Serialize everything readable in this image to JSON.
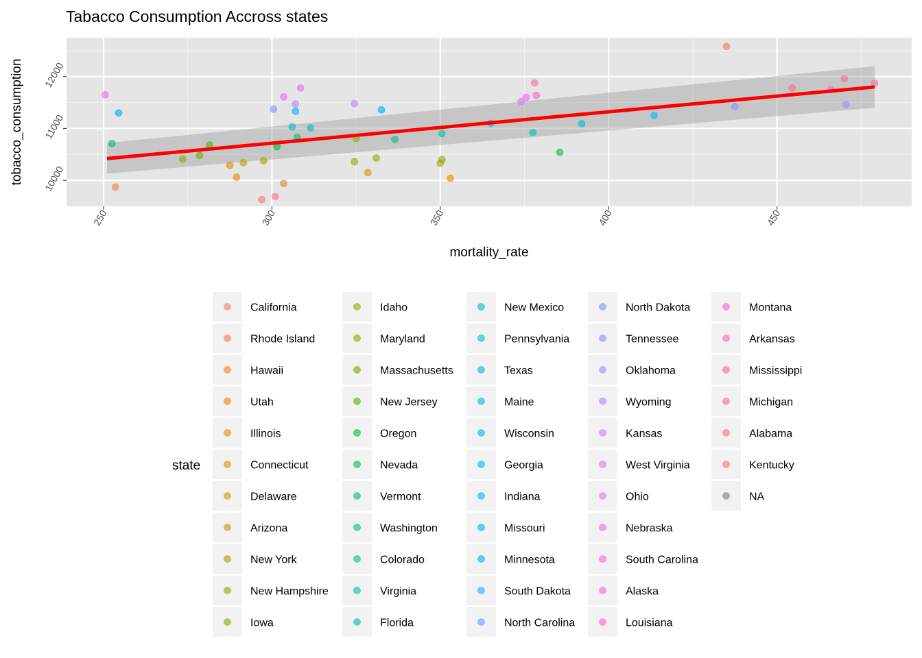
{
  "chart_data": {
    "type": "scatter",
    "title": "Tabacco Consumption Accross states",
    "xlabel": "mortality_rate",
    "ylabel": "tobacco_consumption",
    "xlim": [
      239,
      490
    ],
    "ylim": [
      9500,
      12750
    ],
    "x_ticks": [
      250,
      300,
      350,
      400,
      450
    ],
    "y_ticks": [
      10000,
      11000,
      12000
    ],
    "x_tick_labels": [
      "250",
      "300",
      "350",
      "400",
      "450"
    ],
    "y_tick_labels": [
      "10000",
      "11000",
      "12000"
    ],
    "grid": true,
    "background": "#e5e5e5",
    "legend": {
      "title": "state",
      "position": "bottom",
      "ncol": 5,
      "entries": [
        {
          "name": "California",
          "color": "#F8766D"
        },
        {
          "name": "Rhode Island",
          "color": "#F27D52"
        },
        {
          "name": "Hawaii",
          "color": "#EA8331"
        },
        {
          "name": "Utah",
          "color": "#E18A00"
        },
        {
          "name": "Illinois",
          "color": "#D89000"
        },
        {
          "name": "Connecticut",
          "color": "#CD9600"
        },
        {
          "name": "Delaware",
          "color": "#C09B00"
        },
        {
          "name": "Arizona",
          "color": "#B3A000"
        },
        {
          "name": "New York",
          "color": "#A3A500"
        },
        {
          "name": "New Hampshire",
          "color": "#93AA00"
        },
        {
          "name": "Iowa",
          "color": "#7FAE00"
        },
        {
          "name": "Idaho",
          "color": "#95A900"
        },
        {
          "name": "Maryland",
          "color": "#85AD00"
        },
        {
          "name": "Massachusetts",
          "color": "#6BB100"
        },
        {
          "name": "New Jersey",
          "color": "#4DB500"
        },
        {
          "name": "Oregon",
          "color": "#00BA38"
        },
        {
          "name": "Nevada",
          "color": "#00BC56"
        },
        {
          "name": "Vermont",
          "color": "#00BE6C"
        },
        {
          "name": "Washington",
          "color": "#00BF7F"
        },
        {
          "name": "Colorado",
          "color": "#00C08D"
        },
        {
          "name": "Virginia",
          "color": "#00C19A"
        },
        {
          "name": "Florida",
          "color": "#00C0A7"
        },
        {
          "name": "New Mexico",
          "color": "#00C0B4"
        },
        {
          "name": "Pennsylvania",
          "color": "#00BFC0"
        },
        {
          "name": "Texas",
          "color": "#00BDCA"
        },
        {
          "name": "Maine",
          "color": "#00BCD6"
        },
        {
          "name": "Wisconsin",
          "color": "#00BCD8"
        },
        {
          "name": "Georgia",
          "color": "#00B9E3"
        },
        {
          "name": "Indiana",
          "color": "#00B6EB"
        },
        {
          "name": "Missouri",
          "color": "#00B0F6"
        },
        {
          "name": "Minnesota",
          "color": "#00A9FF"
        },
        {
          "name": "South Dakota",
          "color": "#35A2FF"
        },
        {
          "name": "North Carolina",
          "color": "#619CFF"
        },
        {
          "name": "North Dakota",
          "color": "#7997FF"
        },
        {
          "name": "Tennessee",
          "color": "#8B93FF"
        },
        {
          "name": "Oklahoma",
          "color": "#9F8CFF"
        },
        {
          "name": "Wyoming",
          "color": "#B385FF"
        },
        {
          "name": "Kansas",
          "color": "#C77CFF"
        },
        {
          "name": "West Virginia",
          "color": "#D774F8"
        },
        {
          "name": "Ohio",
          "color": "#E36EF6"
        },
        {
          "name": "Nebraska",
          "color": "#ED68ED"
        },
        {
          "name": "South Carolina",
          "color": "#F564E3"
        },
        {
          "name": "Alaska",
          "color": "#FB61D7"
        },
        {
          "name": "Louisiana",
          "color": "#FF61C9"
        },
        {
          "name": "Montana",
          "color": "#FF62BC"
        },
        {
          "name": "Arkansas",
          "color": "#FF65AE"
        },
        {
          "name": "Mississippi",
          "color": "#FF689F"
        },
        {
          "name": "Michigan",
          "color": "#FF6C91"
        },
        {
          "name": "Alabama",
          "color": "#FC7080"
        },
        {
          "name": "Kentucky",
          "color": "#F8766D"
        },
        {
          "name": "NA",
          "color": "#7F7F7F"
        }
      ]
    },
    "points": [
      {
        "x": 250.5,
        "y": 11650,
        "color": "#FB61D7"
      },
      {
        "x": 252.5,
        "y": 10710,
        "color": "#00BE6C"
      },
      {
        "x": 253.5,
        "y": 9870,
        "color": "#F27D52"
      },
      {
        "x": 254.5,
        "y": 11300,
        "color": "#00A9FF"
      },
      {
        "x": 273.5,
        "y": 10410,
        "color": "#7FAE00"
      },
      {
        "x": 278.5,
        "y": 10480,
        "color": "#6BB100"
      },
      {
        "x": 281.5,
        "y": 10680,
        "color": "#4DB500"
      },
      {
        "x": 287.5,
        "y": 10290,
        "color": "#D89000"
      },
      {
        "x": 289.5,
        "y": 10060,
        "color": "#E18A00"
      },
      {
        "x": 291.5,
        "y": 10340,
        "color": "#C09B00"
      },
      {
        "x": 297.0,
        "y": 9630,
        "color": "#F8766D"
      },
      {
        "x": 297.5,
        "y": 10380,
        "color": "#A3A500"
      },
      {
        "x": 300.5,
        "y": 11370,
        "color": "#7997FF"
      },
      {
        "x": 301.0,
        "y": 9690,
        "color": "#FC7080"
      },
      {
        "x": 301.5,
        "y": 10650,
        "color": "#00BA38"
      },
      {
        "x": 303.5,
        "y": 9940,
        "color": "#EA8331"
      },
      {
        "x": 303.5,
        "y": 11610,
        "color": "#E36EF6"
      },
      {
        "x": 306.0,
        "y": 11030,
        "color": "#00BCD6"
      },
      {
        "x": 307.0,
        "y": 11470,
        "color": "#B385FF"
      },
      {
        "x": 307.0,
        "y": 11330,
        "color": "#00B0F6"
      },
      {
        "x": 307.5,
        "y": 10830,
        "color": "#00BF7F"
      },
      {
        "x": 308.5,
        "y": 11780,
        "color": "#F564E3"
      },
      {
        "x": 311.5,
        "y": 11010,
        "color": "#00BDCA"
      },
      {
        "x": 324.5,
        "y": 11480,
        "color": "#C77CFF"
      },
      {
        "x": 324.5,
        "y": 10360,
        "color": "#93AA00"
      },
      {
        "x": 325.0,
        "y": 10810,
        "color": "#85AD00"
      },
      {
        "x": 328.5,
        "y": 10150,
        "color": "#CD9600"
      },
      {
        "x": 331.0,
        "y": 10430,
        "color": "#95A900"
      },
      {
        "x": 332.5,
        "y": 11360,
        "color": "#00A9FF"
      },
      {
        "x": 336.5,
        "y": 10790,
        "color": "#00BF7F"
      },
      {
        "x": 350.0,
        "y": 10330,
        "color": "#B3A000"
      },
      {
        "x": 350.5,
        "y": 10400,
        "color": "#85AD00"
      },
      {
        "x": 350.5,
        "y": 10900,
        "color": "#00C19A"
      },
      {
        "x": 353.0,
        "y": 10040,
        "color": "#E18A00"
      },
      {
        "x": 365.0,
        "y": 11100,
        "color": "#00B6EB"
      },
      {
        "x": 374.0,
        "y": 11520,
        "color": "#D774F8"
      },
      {
        "x": 375.5,
        "y": 11600,
        "color": "#ED68ED"
      },
      {
        "x": 377.5,
        "y": 10920,
        "color": "#00C0B4"
      },
      {
        "x": 378.0,
        "y": 11880,
        "color": "#FF65AE"
      },
      {
        "x": 378.5,
        "y": 11640,
        "color": "#FF61C9"
      },
      {
        "x": 385.5,
        "y": 10540,
        "color": "#00BC56"
      },
      {
        "x": 392.0,
        "y": 11090,
        "color": "#00B9E3"
      },
      {
        "x": 413.5,
        "y": 11250,
        "color": "#00BCD8"
      },
      {
        "x": 435.0,
        "y": 12580,
        "color": "#F8766D"
      },
      {
        "x": 437.5,
        "y": 11420,
        "color": "#8B93FF"
      },
      {
        "x": 454.5,
        "y": 11780,
        "color": "#FC7080"
      },
      {
        "x": 466.0,
        "y": 11750,
        "color": "#FF62BC"
      },
      {
        "x": 470.0,
        "y": 11960,
        "color": "#FF6C91"
      },
      {
        "x": 470.5,
        "y": 11460,
        "color": "#9F8CFF"
      },
      {
        "x": 479.0,
        "y": 11870,
        "color": "#FF689F"
      }
    ],
    "regression": {
      "method": "lm",
      "line_color": "#FF0000",
      "x": [
        251,
        479
      ],
      "y": [
        10420,
        11800
      ],
      "ci_lower": [
        10130,
        11400
      ],
      "ci_upper": [
        10720,
        12200
      ],
      "ci_color": "#999999"
    }
  }
}
